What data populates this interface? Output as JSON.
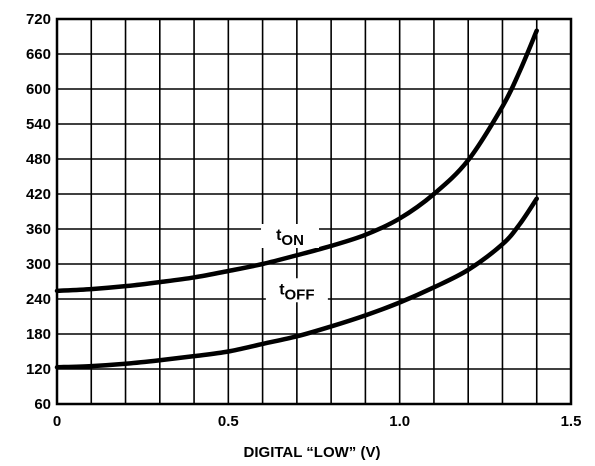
{
  "chart_data": {
    "type": "line",
    "title": "",
    "xlabel": "DIGITAL “LOW” (V)",
    "ylabel": "",
    "xlim": [
      0,
      1.5
    ],
    "ylim": [
      60,
      720
    ],
    "grid": true,
    "x_ticks": [
      0,
      0.5,
      1.0,
      1.5
    ],
    "x_tick_labels": [
      "0",
      "0.5",
      "1.0",
      "1.5"
    ],
    "y_ticks": [
      60,
      120,
      180,
      240,
      300,
      360,
      420,
      480,
      540,
      600,
      660,
      720
    ],
    "y_tick_labels": [
      "60",
      "120",
      "180",
      "240",
      "300",
      "360",
      "420",
      "480",
      "540",
      "600",
      "660",
      "720"
    ],
    "series": [
      {
        "name": "tON",
        "label_main": "t",
        "label_sub": "ON",
        "x": [
          0,
          0.1,
          0.2,
          0.3,
          0.4,
          0.5,
          0.6,
          0.7,
          0.8,
          0.9,
          1.0,
          1.1,
          1.2,
          1.3,
          1.35,
          1.4
        ],
        "values": [
          254,
          257,
          262,
          269,
          277,
          288,
          300,
          315,
          331,
          350,
          378,
          420,
          478,
          570,
          630,
          700
        ]
      },
      {
        "name": "tOFF",
        "label_main": "t",
        "label_sub": "OFF",
        "x": [
          0,
          0.1,
          0.2,
          0.3,
          0.4,
          0.5,
          0.6,
          0.7,
          0.8,
          0.9,
          1.0,
          1.1,
          1.2,
          1.3,
          1.35,
          1.4
        ],
        "values": [
          123,
          125,
          129,
          135,
          142,
          150,
          163,
          176,
          193,
          212,
          234,
          260,
          290,
          334,
          368,
          412
        ]
      }
    ]
  }
}
